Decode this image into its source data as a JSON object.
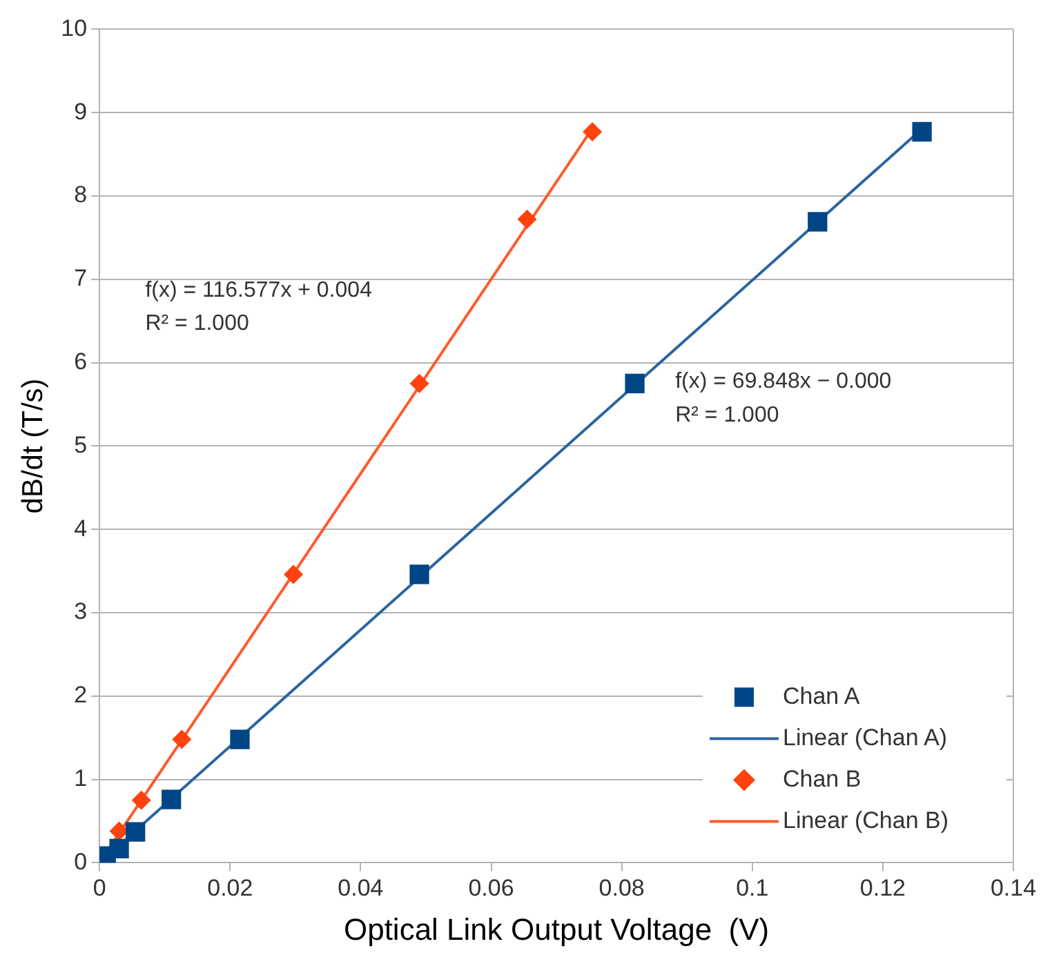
{
  "chart_data": {
    "type": "scatter",
    "xlabel": "Optical Link Output Voltage  (V)",
    "ylabel": "dB/dt (T/s)",
    "xlim": [
      0,
      0.14
    ],
    "xticks": [
      0,
      0.02,
      0.04,
      0.06,
      0.08,
      0.1,
      0.12,
      0.14
    ],
    "ylim": [
      0,
      10
    ],
    "yticks": [
      0,
      1,
      2,
      3,
      4,
      5,
      6,
      7,
      8,
      9,
      10
    ],
    "grid": "y",
    "legend": "bottom right",
    "series": [
      {
        "name": "Chan A",
        "type": "scatter",
        "marker": "square",
        "color": "#004586",
        "x": [
          0.001,
          0.003,
          0.0055,
          0.011,
          0.0215,
          0.049,
          0.082,
          0.11,
          0.126
        ],
        "values": [
          0.08,
          0.17,
          0.37,
          0.76,
          1.48,
          3.46,
          5.75,
          7.69,
          8.77
        ]
      },
      {
        "name": "Linear (Chan A)",
        "type": "line",
        "marker": "none",
        "color": "#2a64a0",
        "x": [
          0.001,
          0.1265
        ],
        "values": [
          0.07,
          8.84
        ]
      },
      {
        "name": "Chan B",
        "type": "scatter",
        "marker": "diamond",
        "color": "#ff420e",
        "x": [
          0.003,
          0.0064,
          0.0126,
          0.0297,
          0.049,
          0.0655,
          0.0755
        ],
        "values": [
          0.38,
          0.75,
          1.48,
          3.46,
          5.75,
          7.72,
          8.77
        ]
      },
      {
        "name": "Linear (Chan B)",
        "type": "line",
        "marker": "none",
        "color": "#ff5a2e",
        "x": [
          0.001,
          0.0755
        ],
        "values": [
          0.12,
          8.81
        ]
      }
    ],
    "annotations": [
      "f(x) = 116.577x + 0.004",
      "R² = 1.000",
      "f(x) = 69.848x − 0.000",
      "R² = 1.000"
    ]
  }
}
